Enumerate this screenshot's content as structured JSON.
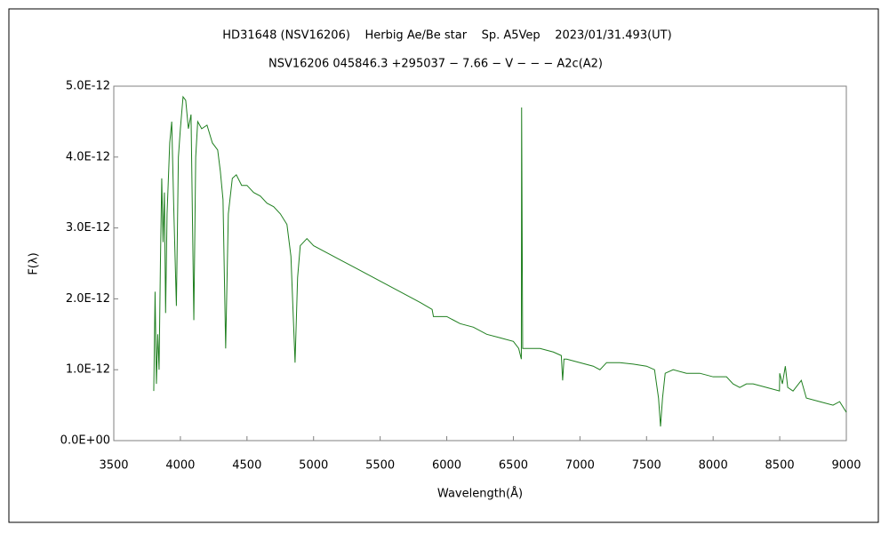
{
  "chart_data": {
    "type": "line",
    "title": "HD31648 (NSV16206)    Herbig Ae/Be star    Sp. A5Vep    2023/01/31.493(UT)",
    "subtitle": "NSV16206 045846.3 +295037 − 7.66 − V − − − A2c(A2)",
    "x_label": "Wavelength(Å)",
    "y_label": "F(λ)",
    "xlim": [
      3500,
      9000
    ],
    "xticks": [
      3500,
      4000,
      4500,
      5000,
      5500,
      6000,
      6500,
      7000,
      7500,
      8000,
      8500,
      9000
    ],
    "ylim": [
      0,
      5e-12
    ],
    "yticks": [
      {
        "value": 0,
        "label": "0.0E+00"
      },
      {
        "value": 1e-12,
        "label": "1.0E-12"
      },
      {
        "value": 2e-12,
        "label": "2.0E-12"
      },
      {
        "value": 3e-12,
        "label": "3.0E-12"
      },
      {
        "value": 4e-12,
        "label": "4.0E-12"
      },
      {
        "value": 5e-12,
        "label": "5.0E-12"
      }
    ],
    "grid": false,
    "series": [
      {
        "color": "#1f7f1f",
        "x": [
          3800,
          3810,
          3820,
          3830,
          3840,
          3850,
          3860,
          3870,
          3880,
          3889,
          3900,
          3920,
          3935,
          3950,
          3970,
          3985,
          4000,
          4020,
          4040,
          4060,
          4080,
          4101,
          4115,
          4130,
          4160,
          4200,
          4240,
          4280,
          4300,
          4320,
          4340,
          4360,
          4390,
          4420,
          4460,
          4500,
          4550,
          4600,
          4650,
          4700,
          4750,
          4800,
          4830,
          4861,
          4880,
          4900,
          4950,
          5000,
          5100,
          5200,
          5300,
          5400,
          5500,
          5600,
          5700,
          5800,
          5890,
          5900,
          6000,
          6100,
          6200,
          6300,
          6400,
          6500,
          6540,
          6560,
          6562,
          6565,
          6570,
          6600,
          6700,
          6800,
          6860,
          6870,
          6880,
          6900,
          7000,
          7100,
          7150,
          7200,
          7300,
          7400,
          7500,
          7560,
          7590,
          7605,
          7620,
          7640,
          7700,
          7800,
          7900,
          8000,
          8100,
          8150,
          8200,
          8250,
          8300,
          8400,
          8498,
          8500,
          8520,
          8542,
          8560,
          8600,
          8662,
          8700,
          8800,
          8900,
          8950,
          9000
        ],
        "values": [
          7e-13,
          2.1e-12,
          8e-13,
          1.5e-12,
          1e-12,
          2.5e-12,
          3.7e-12,
          2.8e-12,
          3.5e-12,
          1.8e-12,
          3.2e-12,
          4.2e-12,
          4.5e-12,
          3.3e-12,
          1.9e-12,
          4e-12,
          4.4e-12,
          4.85e-12,
          4.8e-12,
          4.4e-12,
          4.6e-12,
          1.7e-12,
          4e-12,
          4.5e-12,
          4.4e-12,
          4.45e-12,
          4.2e-12,
          4.1e-12,
          3.8e-12,
          3.4e-12,
          1.3e-12,
          3.2e-12,
          3.7e-12,
          3.75e-12,
          3.6e-12,
          3.6e-12,
          3.5e-12,
          3.45e-12,
          3.35e-12,
          3.3e-12,
          3.2e-12,
          3.05e-12,
          2.6e-12,
          1.1e-12,
          2.3e-12,
          2.75e-12,
          2.85e-12,
          2.75e-12,
          2.65e-12,
          2.55e-12,
          2.45e-12,
          2.35e-12,
          2.25e-12,
          2.15e-12,
          2.05e-12,
          1.95e-12,
          1.85e-12,
          1.75e-12,
          1.75e-12,
          1.65e-12,
          1.6e-12,
          1.5e-12,
          1.45e-12,
          1.4e-12,
          1.3e-12,
          1.15e-12,
          4.7e-12,
          3.4e-12,
          1.3e-12,
          1.3e-12,
          1.3e-12,
          1.25e-12,
          1.2e-12,
          8.5e-13,
          1.15e-12,
          1.15e-12,
          1.1e-12,
          1.05e-12,
          1e-12,
          1.1e-12,
          1.1e-12,
          1.08e-12,
          1.05e-12,
          1e-12,
          6e-13,
          2e-13,
          6e-13,
          9.5e-13,
          1e-12,
          9.5e-13,
          9.5e-13,
          9e-13,
          9e-13,
          8e-13,
          7.5e-13,
          8e-13,
          8e-13,
          7.5e-13,
          7e-13,
          9.5e-13,
          8e-13,
          1.05e-12,
          7.5e-13,
          7e-13,
          8.5e-13,
          6e-13,
          5.5e-13,
          5e-13,
          5.5e-13,
          4e-13
        ]
      }
    ]
  }
}
